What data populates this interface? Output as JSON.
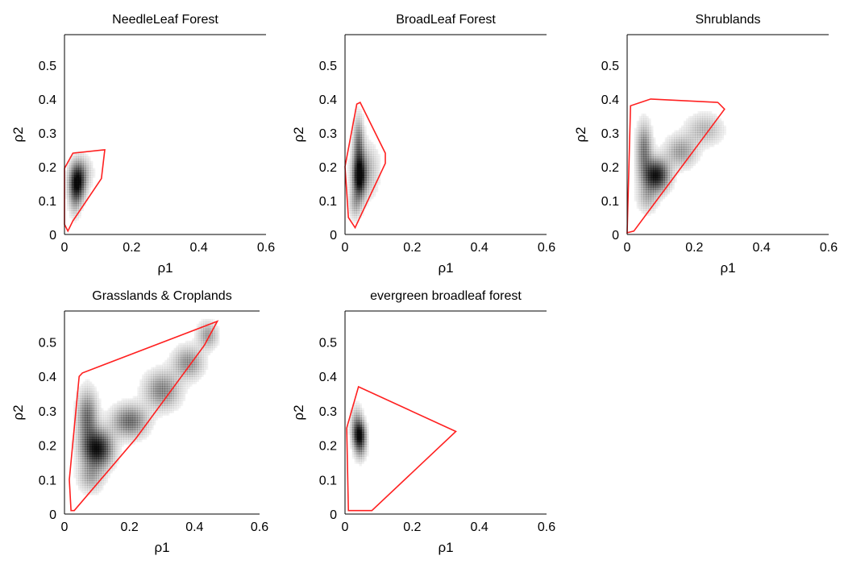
{
  "figure": {
    "background": "#ffffff",
    "hull_color": "#ff2020",
    "density_color": "#000000",
    "frame_color": "#000000"
  },
  "chart_data": [
    {
      "type": "heatmap",
      "title": "NeedleLeaf Forest",
      "xlabel": "ρ1",
      "ylabel": "ρ2",
      "xlim": [
        0,
        0.6
      ],
      "ylim": [
        0,
        0.6
      ],
      "xticks": [
        "0",
        "0.2",
        "0.4",
        "0.6"
      ],
      "yticks": [
        "0",
        "0.1",
        "0.2",
        "0.3",
        "0.4",
        "0.5"
      ],
      "hull": [
        [
          0.01,
          0.01
        ],
        [
          0.0,
          0.03
        ],
        [
          0.0,
          0.195
        ],
        [
          0.025,
          0.24
        ],
        [
          0.12,
          0.25
        ],
        [
          0.11,
          0.165
        ],
        [
          0.025,
          0.04
        ]
      ],
      "density": [
        {
          "cx": 0.038,
          "cy": 0.155,
          "sx": 0.015,
          "sy": 0.035,
          "w": 1.0
        },
        {
          "cx": 0.03,
          "cy": 0.11,
          "sx": 0.012,
          "sy": 0.04,
          "w": 0.25
        },
        {
          "cx": 0.055,
          "cy": 0.185,
          "sx": 0.02,
          "sy": 0.03,
          "w": 0.2
        }
      ]
    },
    {
      "type": "heatmap",
      "title": "BroadLeaf Forest",
      "xlabel": "ρ1",
      "ylabel": "ρ2",
      "xlim": [
        0,
        0.6
      ],
      "ylim": [
        0,
        0.6
      ],
      "xticks": [
        "0",
        "0.2",
        "0.4",
        "0.6"
      ],
      "yticks": [
        "0",
        "0.1",
        "0.2",
        "0.3",
        "0.4",
        "0.5"
      ],
      "hull": [
        [
          0.03,
          0.02
        ],
        [
          0.01,
          0.05
        ],
        [
          0.0,
          0.2
        ],
        [
          0.035,
          0.385
        ],
        [
          0.045,
          0.39
        ],
        [
          0.12,
          0.24
        ],
        [
          0.12,
          0.21
        ]
      ],
      "density": [
        {
          "cx": 0.042,
          "cy": 0.17,
          "sx": 0.012,
          "sy": 0.04,
          "w": 1.0
        },
        {
          "cx": 0.04,
          "cy": 0.27,
          "sx": 0.01,
          "sy": 0.05,
          "w": 0.5
        },
        {
          "cx": 0.06,
          "cy": 0.19,
          "sx": 0.025,
          "sy": 0.05,
          "w": 0.3
        },
        {
          "cx": 0.03,
          "cy": 0.09,
          "sx": 0.012,
          "sy": 0.03,
          "w": 0.25
        }
      ]
    },
    {
      "type": "heatmap",
      "title": "Shrublands",
      "xlabel": "ρ1",
      "ylabel": "ρ2",
      "xlim": [
        0,
        0.6
      ],
      "ylim": [
        0,
        0.6
      ],
      "xticks": [
        "0",
        "0.2",
        "0.4",
        "0.6"
      ],
      "yticks": [
        "0",
        "0.1",
        "0.2",
        "0.3",
        "0.4",
        "0.5"
      ],
      "hull": [
        [
          0.0,
          0.005
        ],
        [
          0.01,
          0.38
        ],
        [
          0.07,
          0.4
        ],
        [
          0.27,
          0.39
        ],
        [
          0.29,
          0.37
        ],
        [
          0.02,
          0.01
        ]
      ],
      "density": [
        {
          "cx": 0.085,
          "cy": 0.175,
          "sx": 0.025,
          "sy": 0.03,
          "w": 1.0
        },
        {
          "cx": 0.05,
          "cy": 0.25,
          "sx": 0.015,
          "sy": 0.05,
          "w": 0.5
        },
        {
          "cx": 0.16,
          "cy": 0.245,
          "sx": 0.03,
          "sy": 0.03,
          "w": 0.35
        },
        {
          "cx": 0.23,
          "cy": 0.31,
          "sx": 0.035,
          "sy": 0.03,
          "w": 0.25
        },
        {
          "cx": 0.06,
          "cy": 0.11,
          "sx": 0.02,
          "sy": 0.03,
          "w": 0.25
        }
      ]
    },
    {
      "type": "heatmap",
      "title": "Grasslands & Croplands",
      "xlabel": "ρ1",
      "ylabel": "ρ2",
      "xlim": [
        0,
        0.6
      ],
      "ylim": [
        0,
        0.6
      ],
      "xticks": [
        "0",
        "0.2",
        "0.4",
        "0.6"
      ],
      "yticks": [
        "0",
        "0.1",
        "0.2",
        "0.3",
        "0.4",
        "0.5"
      ],
      "hull": [
        [
          0.02,
          0.01
        ],
        [
          0.015,
          0.1
        ],
        [
          0.045,
          0.4
        ],
        [
          0.055,
          0.41
        ],
        [
          0.47,
          0.56
        ],
        [
          0.43,
          0.49
        ],
        [
          0.22,
          0.22
        ],
        [
          0.03,
          0.01
        ]
      ],
      "density": [
        {
          "cx": 0.1,
          "cy": 0.19,
          "sx": 0.03,
          "sy": 0.035,
          "w": 1.0
        },
        {
          "cx": 0.07,
          "cy": 0.28,
          "sx": 0.02,
          "sy": 0.05,
          "w": 0.55
        },
        {
          "cx": 0.2,
          "cy": 0.27,
          "sx": 0.035,
          "sy": 0.03,
          "w": 0.55
        },
        {
          "cx": 0.3,
          "cy": 0.36,
          "sx": 0.035,
          "sy": 0.035,
          "w": 0.45
        },
        {
          "cx": 0.38,
          "cy": 0.44,
          "sx": 0.03,
          "sy": 0.03,
          "w": 0.4
        },
        {
          "cx": 0.44,
          "cy": 0.52,
          "sx": 0.02,
          "sy": 0.025,
          "w": 0.35
        },
        {
          "cx": 0.08,
          "cy": 0.11,
          "sx": 0.025,
          "sy": 0.03,
          "w": 0.3
        }
      ]
    },
    {
      "type": "heatmap",
      "title": "evergreen broadleaf forest",
      "xlabel": "ρ1",
      "ylabel": "ρ2",
      "xlim": [
        0,
        0.6
      ],
      "ylim": [
        0,
        0.6
      ],
      "xticks": [
        "0",
        "0.2",
        "0.4",
        "0.6"
      ],
      "yticks": [
        "0",
        "0.1",
        "0.2",
        "0.3",
        "0.4",
        "0.5"
      ],
      "hull": [
        [
          0.01,
          0.01
        ],
        [
          0.005,
          0.25
        ],
        [
          0.04,
          0.37
        ],
        [
          0.33,
          0.24
        ],
        [
          0.08,
          0.01
        ]
      ],
      "density": [
        {
          "cx": 0.042,
          "cy": 0.23,
          "sx": 0.012,
          "sy": 0.025,
          "w": 1.0
        },
        {
          "cx": 0.035,
          "cy": 0.27,
          "sx": 0.012,
          "sy": 0.03,
          "w": 0.3
        },
        {
          "cx": 0.045,
          "cy": 0.19,
          "sx": 0.012,
          "sy": 0.025,
          "w": 0.3
        }
      ]
    }
  ]
}
